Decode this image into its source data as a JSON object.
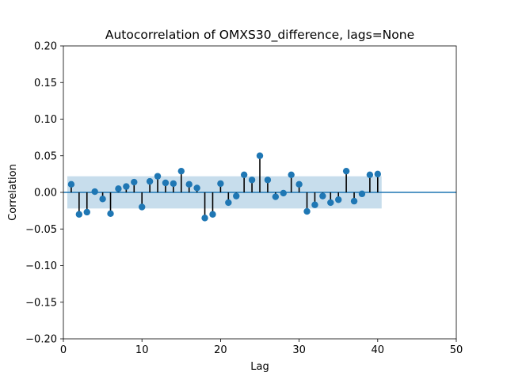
{
  "chart_data": {
    "type": "scatter",
    "title": "Autocorrelation of OMXS30_difference, lags=None",
    "xlabel": "Lag",
    "ylabel": "Correlation",
    "xlim": [
      0,
      50
    ],
    "ylim": [
      -0.2,
      0.2
    ],
    "x_ticks": [
      "0",
      "10",
      "20",
      "30",
      "40",
      "50"
    ],
    "y_ticks": [
      "−0.20",
      "−0.15",
      "−0.10",
      "−0.05",
      "0.00",
      "0.05",
      "0.10",
      "0.15",
      "0.20"
    ],
    "x_tick_values": [
      0,
      10,
      20,
      30,
      40,
      50
    ],
    "y_tick_values": [
      -0.2,
      -0.15,
      -0.1,
      -0.05,
      0,
      0.05,
      0.1,
      0.15,
      0.2
    ],
    "grid": false,
    "colors": {
      "marker": "#1f77b4",
      "stem": "#000000",
      "confidence": "#1f77b4",
      "zero_line": "#1f77b4"
    },
    "confidence_band": {
      "x": [
        0.5,
        40.5
      ],
      "upper": 0.022,
      "lower": -0.022
    },
    "lags": [
      1,
      2,
      3,
      4,
      5,
      6,
      7,
      8,
      9,
      10,
      11,
      12,
      13,
      14,
      15,
      16,
      17,
      18,
      19,
      20,
      21,
      22,
      23,
      24,
      25,
      26,
      27,
      28,
      29,
      30,
      31,
      32,
      33,
      34,
      35,
      36,
      37,
      38,
      39,
      40
    ],
    "values": [
      0.011,
      -0.03,
      -0.027,
      0.001,
      -0.009,
      -0.029,
      0.005,
      0.008,
      0.014,
      -0.02,
      0.015,
      0.022,
      0.013,
      0.012,
      0.029,
      0.011,
      0.006,
      -0.035,
      -0.03,
      0.012,
      -0.014,
      -0.005,
      0.024,
      0.017,
      0.05,
      0.017,
      -0.006,
      -0.001,
      0.024,
      0.011,
      -0.026,
      -0.017,
      -0.005,
      -0.014,
      -0.01,
      0.029,
      -0.012,
      -0.002,
      0.024,
      0.025
    ]
  }
}
